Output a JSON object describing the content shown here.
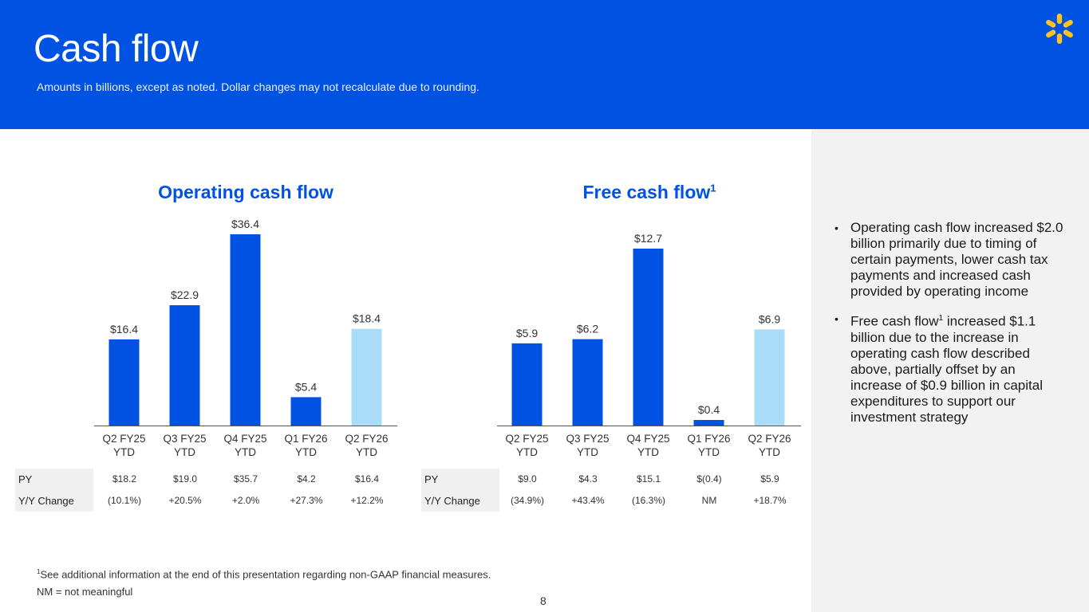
{
  "header": {
    "title": "Cash flow",
    "subtitle": "Amounts in billions, except as noted.  Dollar changes may not recalculate due to rounding."
  },
  "colors": {
    "brand_blue": "#0053e2",
    "light_blue": "#a9ddf7",
    "spark_yellow": "#ffc220"
  },
  "chart_data": [
    {
      "type": "bar",
      "title": "Operating cash flow",
      "categories": [
        [
          "Q2 FY25",
          "YTD"
        ],
        [
          "Q3 FY25",
          "YTD"
        ],
        [
          "Q4 FY25",
          "YTD"
        ],
        [
          "Q1 FY26",
          "YTD"
        ],
        [
          "Q2 FY26",
          "YTD"
        ]
      ],
      "values": [
        16.4,
        22.9,
        36.4,
        5.4,
        18.4
      ],
      "labels": [
        "$16.4",
        "$22.9",
        "$36.4",
        "$5.4",
        "$18.4"
      ],
      "highlight_last": true,
      "ylim": [
        0,
        36.4
      ],
      "table": {
        "rows": [
          {
            "label": "PY",
            "values": [
              "$18.2",
              "$19.0",
              "$35.7",
              "$4.2",
              "$16.4"
            ]
          },
          {
            "label": "Y/Y Change",
            "values": [
              "(10.1%)",
              "+20.5%",
              "+2.0%",
              "+27.3%",
              "+12.2%"
            ]
          }
        ]
      }
    },
    {
      "type": "bar",
      "title": "Free cash flow",
      "title_sup": "1",
      "categories": [
        [
          "Q2 FY25",
          "YTD"
        ],
        [
          "Q3 FY25",
          "YTD"
        ],
        [
          "Q4 FY25",
          "YTD"
        ],
        [
          "Q1 FY26",
          "YTD"
        ],
        [
          "Q2 FY26",
          "YTD"
        ]
      ],
      "values": [
        5.9,
        6.2,
        12.7,
        0.4,
        6.9
      ],
      "labels": [
        "$5.9",
        "$6.2",
        "$12.7",
        "$0.4",
        "$6.9"
      ],
      "highlight_last": true,
      "ylim": [
        0,
        12.7
      ],
      "table": {
        "rows": [
          {
            "label": "PY",
            "values": [
              "$9.0",
              "$4.3",
              "$15.1",
              "$(0.4)",
              "$5.9"
            ]
          },
          {
            "label": "Y/Y Change",
            "values": [
              "(34.9%)",
              "+43.4%",
              "(16.3%)",
              "NM",
              "+18.7%"
            ]
          }
        ]
      }
    }
  ],
  "bullets": {
    "b1": "Operating cash flow increased $2.0 billion primarily due to timing of certain payments, lower cash tax payments and increased cash provided by operating income",
    "b2_pre": "Free cash flow",
    "b2_sup": "1",
    "b2_post": " increased $1.1 billion due to the increase in operating cash flow described above, partially offset by an increase of $0.9 billion in capital expenditures to support our investment strategy"
  },
  "footer": {
    "footnote_sup": "1",
    "footnote": "See additional information at the end of this presentation regarding non-GAAP financial measures.",
    "nm_note": "NM = not meaningful",
    "page_number": "8"
  }
}
